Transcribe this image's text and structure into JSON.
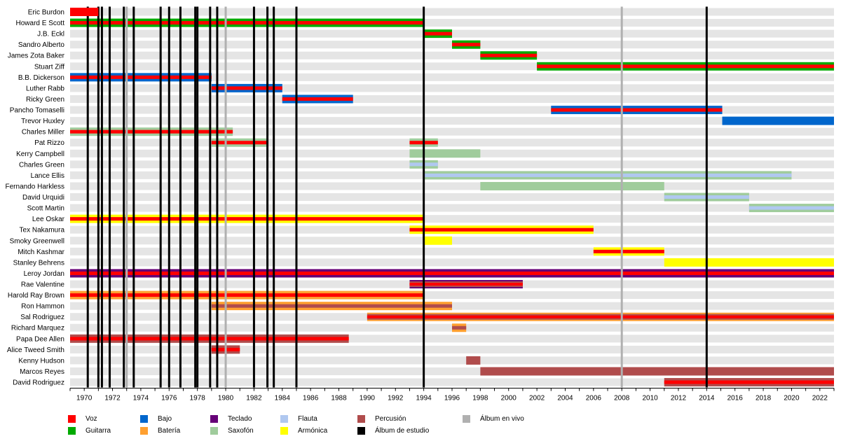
{
  "chart_data": {
    "type": "timeline",
    "title": "",
    "x_range": [
      1969,
      2023
    ],
    "x_ticks": [
      1970,
      1972,
      1974,
      1976,
      1978,
      1980,
      1982,
      1984,
      1986,
      1988,
      1990,
      1992,
      1994,
      1996,
      1998,
      2000,
      2002,
      2004,
      2006,
      2008,
      2010,
      2012,
      2014,
      2016,
      2018,
      2020,
      2022
    ],
    "colors": {
      "voz": "#ff0000",
      "guitarra": "#00aa00",
      "bajo": "#0066cc",
      "teclado": "#660077",
      "bateria": "#ffa030",
      "saxofon": "#a0cc9c",
      "flauta": "#b0c8f0",
      "armonica": "#ffff00",
      "percusion": "#b04c4c",
      "album_estudio": "#000000",
      "album_vivo": "#b0b0b0",
      "row_bg": "#e5e5e5"
    },
    "members": [
      {
        "name": "Eric Burdon",
        "bars": [
          {
            "start": 1969,
            "end": 1971,
            "roles": [
              "voz"
            ]
          }
        ]
      },
      {
        "name": "Howard E Scott",
        "bars": [
          {
            "start": 1969,
            "end": 1994,
            "roles": [
              "guitarra",
              "voz"
            ]
          }
        ]
      },
      {
        "name": "J.B. Eckl",
        "bars": [
          {
            "start": 1994,
            "end": 1996,
            "roles": [
              "guitarra",
              "voz"
            ]
          }
        ]
      },
      {
        "name": "Sandro Alberto",
        "bars": [
          {
            "start": 1996,
            "end": 1998,
            "roles": [
              "guitarra",
              "voz"
            ]
          }
        ]
      },
      {
        "name": "James Zota Baker",
        "bars": [
          {
            "start": 1998,
            "end": 2002,
            "roles": [
              "guitarra",
              "voz"
            ]
          }
        ]
      },
      {
        "name": "Stuart Ziff",
        "bars": [
          {
            "start": 2002,
            "end": 2023,
            "roles": [
              "guitarra",
              "voz"
            ]
          }
        ]
      },
      {
        "name": "B.B. Dickerson",
        "bars": [
          {
            "start": 1969,
            "end": 1979,
            "roles": [
              "bajo",
              "voz"
            ]
          }
        ]
      },
      {
        "name": "Luther Rabb",
        "bars": [
          {
            "start": 1979,
            "end": 1984,
            "roles": [
              "bajo",
              "voz"
            ]
          }
        ]
      },
      {
        "name": "Ricky Green",
        "bars": [
          {
            "start": 1984,
            "end": 1989,
            "roles": [
              "bajo",
              "voz"
            ]
          }
        ]
      },
      {
        "name": "Pancho Tomaselli",
        "bars": [
          {
            "start": 2003,
            "end": 2015.1,
            "roles": [
              "bajo",
              "voz"
            ]
          }
        ]
      },
      {
        "name": "Trevor Huxley",
        "bars": [
          {
            "start": 2015.1,
            "end": 2023,
            "roles": [
              "bajo"
            ]
          }
        ]
      },
      {
        "name": "Charles Miller",
        "bars": [
          {
            "start": 1969,
            "end": 1980.5,
            "roles": [
              "saxofon",
              "voz"
            ]
          }
        ]
      },
      {
        "name": "Pat Rizzo",
        "bars": [
          {
            "start": 1979,
            "end": 1983,
            "roles": [
              "saxofon",
              "voz"
            ]
          },
          {
            "start": 1993,
            "end": 1995,
            "roles": [
              "saxofon",
              "voz"
            ]
          }
        ]
      },
      {
        "name": "Kerry Campbell",
        "bars": [
          {
            "start": 1993,
            "end": 1998,
            "roles": [
              "saxofon"
            ]
          }
        ]
      },
      {
        "name": "Charles Green",
        "bars": [
          {
            "start": 1993,
            "end": 1995,
            "roles": [
              "saxofon",
              "flauta"
            ]
          }
        ]
      },
      {
        "name": "Lance Ellis",
        "bars": [
          {
            "start": 1994,
            "end": 2020,
            "roles": [
              "saxofon",
              "flauta"
            ]
          }
        ]
      },
      {
        "name": "Fernando Harkless",
        "bars": [
          {
            "start": 1998,
            "end": 2011,
            "roles": [
              "saxofon"
            ]
          }
        ]
      },
      {
        "name": "David Urquidi",
        "bars": [
          {
            "start": 2011,
            "end": 2017,
            "roles": [
              "saxofon",
              "flauta"
            ]
          }
        ]
      },
      {
        "name": "Scott Martin",
        "bars": [
          {
            "start": 2017,
            "end": 2023,
            "roles": [
              "saxofon",
              "flauta"
            ]
          }
        ]
      },
      {
        "name": "Lee Oskar",
        "bars": [
          {
            "start": 1969,
            "end": 1994,
            "roles": [
              "armonica",
              "voz"
            ]
          }
        ]
      },
      {
        "name": "Tex Nakamura",
        "bars": [
          {
            "start": 1993,
            "end": 2006,
            "roles": [
              "armonica",
              "voz"
            ]
          }
        ]
      },
      {
        "name": "Smoky Greenwell",
        "bars": [
          {
            "start": 1994,
            "end": 1996,
            "roles": [
              "armonica"
            ]
          }
        ]
      },
      {
        "name": "Mitch Kashmar",
        "bars": [
          {
            "start": 2006,
            "end": 2011,
            "roles": [
              "armonica",
              "voz"
            ]
          }
        ]
      },
      {
        "name": "Stanley Behrens",
        "bars": [
          {
            "start": 2011,
            "end": 2023,
            "roles": [
              "armonica"
            ]
          }
        ]
      },
      {
        "name": "Leroy Jordan",
        "bars": [
          {
            "start": 1969,
            "end": 2023,
            "roles": [
              "teclado",
              "voz"
            ]
          }
        ]
      },
      {
        "name": "Rae Valentine",
        "bars": [
          {
            "start": 1993,
            "end": 2001,
            "roles": [
              "teclado",
              "percusion",
              "voz"
            ]
          }
        ]
      },
      {
        "name": "Harold Ray Brown",
        "bars": [
          {
            "start": 1969,
            "end": 1994,
            "roles": [
              "bateria",
              "voz"
            ]
          }
        ]
      },
      {
        "name": "Ron Hammon",
        "bars": [
          {
            "start": 1979,
            "end": 1996,
            "roles": [
              "bateria",
              "percusion"
            ]
          }
        ]
      },
      {
        "name": "Sal Rodriguez",
        "bars": [
          {
            "start": 1990,
            "end": 2023,
            "roles": [
              "bateria",
              "percusion",
              "voz"
            ]
          }
        ]
      },
      {
        "name": "Richard Marquez",
        "bars": [
          {
            "start": 1996,
            "end": 1997,
            "roles": [
              "bateria",
              "percusion"
            ]
          }
        ]
      },
      {
        "name": "Papa Dee Allen",
        "bars": [
          {
            "start": 1969,
            "end": 1988.7,
            "roles": [
              "percusion",
              "voz"
            ]
          }
        ]
      },
      {
        "name": "Alice Tweed Smith",
        "bars": [
          {
            "start": 1979,
            "end": 1981,
            "roles": [
              "percusion",
              "voz"
            ]
          }
        ]
      },
      {
        "name": "Kenny Hudson",
        "bars": [
          {
            "start": 1997,
            "end": 1998,
            "roles": [
              "percusion"
            ]
          }
        ]
      },
      {
        "name": "Marcos Reyes",
        "bars": [
          {
            "start": 1998,
            "end": 2023,
            "roles": [
              "percusion"
            ]
          }
        ]
      },
      {
        "name": "David Rodriguez",
        "bars": [
          {
            "start": 2011,
            "end": 2023,
            "roles": [
              "percusion",
              "voz"
            ]
          }
        ]
      }
    ],
    "studio_albums": [
      1970.25,
      1971.0,
      1971.25,
      1971.8,
      1972.8,
      1973.5,
      1975.4,
      1976.0,
      1976.8,
      1977.85,
      1978.0,
      1978.9,
      1979.4,
      1982.0,
      1982.95,
      1983.4,
      1985.0,
      1994.0,
      2014.0
    ],
    "live_albums": [
      1973.0,
      1980.0,
      2008.0
    ],
    "legend": [
      {
        "key": "voz",
        "label": "Voz"
      },
      {
        "key": "guitarra",
        "label": "Guitarra"
      },
      {
        "key": "bajo",
        "label": "Bajo"
      },
      {
        "key": "bateria",
        "label": "Batería"
      },
      {
        "key": "teclado",
        "label": "Teclado"
      },
      {
        "key": "saxofon",
        "label": "Saxofón"
      },
      {
        "key": "flauta",
        "label": "Flauta"
      },
      {
        "key": "armonica",
        "label": "Armónica"
      },
      {
        "key": "percusion",
        "label": "Percusión"
      },
      {
        "key": "album_estudio",
        "label": "Álbum de estudio"
      },
      {
        "key": "album_vivo",
        "label": "Álbum en vivo"
      }
    ],
    "legend_placement": "bottom"
  }
}
